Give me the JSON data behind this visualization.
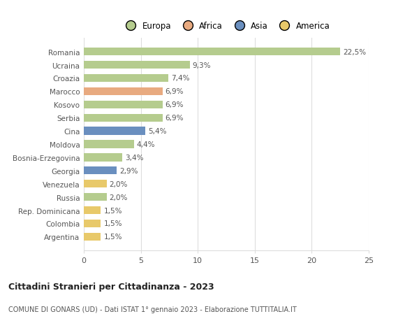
{
  "categories": [
    "Romania",
    "Ucraina",
    "Croazia",
    "Marocco",
    "Kosovo",
    "Serbia",
    "Cina",
    "Moldova",
    "Bosnia-Erzegovina",
    "Georgia",
    "Venezuela",
    "Russia",
    "Rep. Dominicana",
    "Colombia",
    "Argentina"
  ],
  "values": [
    22.5,
    9.3,
    7.4,
    6.9,
    6.9,
    6.9,
    5.4,
    4.4,
    3.4,
    2.9,
    2.0,
    2.0,
    1.5,
    1.5,
    1.5
  ],
  "labels": [
    "22,5%",
    "9,3%",
    "7,4%",
    "6,9%",
    "6,9%",
    "6,9%",
    "5,4%",
    "4,4%",
    "3,4%",
    "2,9%",
    "2,0%",
    "2,0%",
    "1,5%",
    "1,5%",
    "1,5%"
  ],
  "colors": [
    "#b5cc8e",
    "#b5cc8e",
    "#b5cc8e",
    "#e8aa80",
    "#b5cc8e",
    "#b5cc8e",
    "#6a8fbf",
    "#b5cc8e",
    "#b5cc8e",
    "#6a8fbf",
    "#e8c96a",
    "#b5cc8e",
    "#e8c96a",
    "#e8c96a",
    "#e8c96a"
  ],
  "legend_labels": [
    "Europa",
    "Africa",
    "Asia",
    "America"
  ],
  "legend_colors": [
    "#b5cc8e",
    "#e8aa80",
    "#6a8fbf",
    "#e8c96a"
  ],
  "xlim": [
    0,
    25
  ],
  "xticks": [
    0,
    5,
    10,
    15,
    20,
    25
  ],
  "title": "Cittadini Stranieri per Cittadinanza - 2023",
  "subtitle": "COMUNE DI GONARS (UD) - Dati ISTAT 1° gennaio 2023 - Elaborazione TUTTITALIA.IT",
  "background_color": "#ffffff",
  "bar_height": 0.6,
  "grid_color": "#dddddd",
  "label_color": "#555555"
}
